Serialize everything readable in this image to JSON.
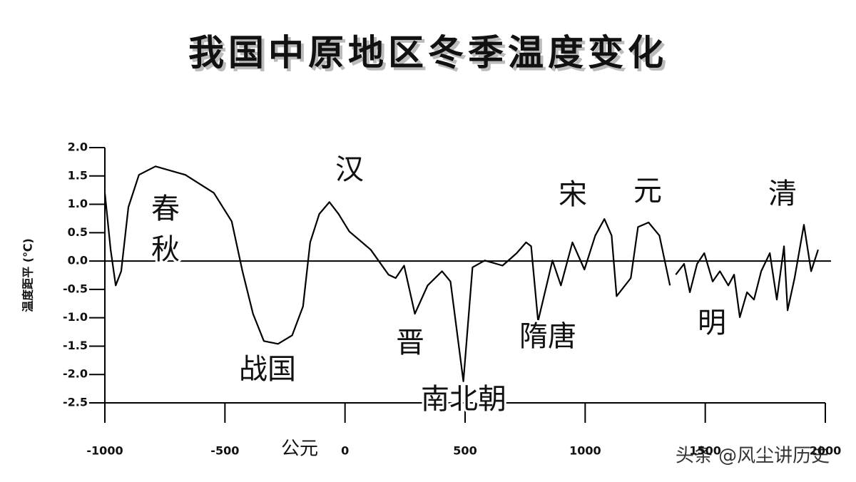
{
  "chart_data": {
    "type": "line",
    "title": "我国中原地区冬季温度变化",
    "y_label": "温度距平 (℃)",
    "x_label": "公元",
    "annotations": [
      "春",
      "秋",
      "战国",
      "汉",
      "晋",
      "南北朝",
      "隋唐",
      "宋",
      "元",
      "明",
      "清"
    ],
    "watermark": "头条 @风尘讲历史",
    "color": "#000000",
    "xlim": [
      -1000,
      2000
    ],
    "xticks": [
      -1000,
      -500,
      0,
      500,
      1000,
      1500,
      2000
    ],
    "ylim": [
      -2.5,
      2.0
    ],
    "yticks": [
      {
        "value": 2.0,
        "label": "2.0"
      },
      1.5,
      {
        "value": 1.0,
        "label": "1.0"
      },
      0.5,
      {
        "value": 0,
        "label": "0.0"
      },
      -0.5,
      {
        "value": -1.0,
        "label": "-1.0"
      },
      -1.5,
      {
        "value": -2.0,
        "label": "-2.0"
      },
      -2.5
    ],
    "x": [
      -1000,
      -976,
      -955,
      -932,
      -902,
      -858,
      -789,
      -665,
      -546,
      -472,
      -427,
      -383,
      -338,
      -279,
      -220,
      -175,
      -145,
      -107,
      -65,
      -27,
      18,
      107,
      181,
      211,
      246,
      291,
      344,
      404,
      439,
      493,
      531,
      582,
      656,
      715,
      754,
      775,
      804,
      864,
      899,
      947,
      997,
      1042,
      1080,
      1110,
      1131,
      1190,
      1220,
      1264,
      1309,
      1353,
      null,
      1377,
      1412,
      1436,
      1466,
      1496,
      1531,
      1561,
      1596,
      1620,
      1644,
      1674,
      1703,
      1733,
      1769,
      1798,
      1828,
      1843,
      1872,
      1911,
      1941,
      1970
    ],
    "values": [
      1.2,
      0.2,
      -0.43,
      -0.18,
      0.95,
      1.52,
      1.67,
      1.52,
      1.2,
      0.7,
      -0.18,
      -0.93,
      -1.41,
      -1.46,
      -1.31,
      -0.8,
      0.33,
      0.83,
      1.04,
      0.83,
      0.52,
      0.2,
      -0.24,
      -0.3,
      -0.08,
      -0.93,
      -0.43,
      -0.18,
      -0.36,
      -2.12,
      -0.11,
      0.01,
      -0.08,
      0.14,
      0.33,
      0.26,
      -1.06,
      0.01,
      -0.43,
      0.33,
      -0.15,
      0.45,
      0.74,
      0.45,
      -0.62,
      -0.3,
      0.6,
      0.68,
      0.45,
      -0.43,
      null,
      -0.24,
      -0.05,
      -0.55,
      -0.05,
      0.14,
      -0.36,
      -0.18,
      -0.43,
      -0.24,
      -0.99,
      -0.55,
      -0.68,
      -0.18,
      0.14,
      -0.68,
      0.26,
      -0.87,
      -0.3,
      0.64,
      -0.18,
      0.2
    ]
  }
}
